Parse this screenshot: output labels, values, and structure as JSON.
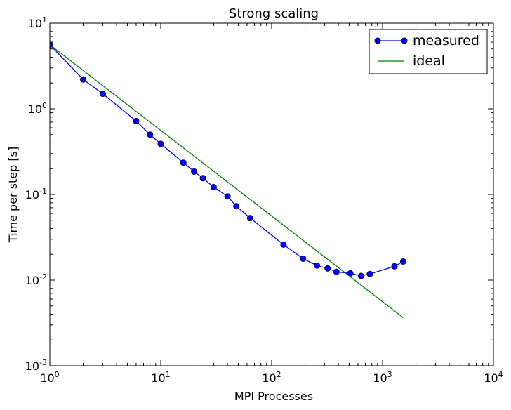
{
  "chart_data": {
    "type": "line",
    "title": "Strong scaling",
    "xlabel": "MPI Processes",
    "ylabel": "Time per step [s]",
    "xscale": "log",
    "yscale": "log",
    "xlim": [
      1,
      10000
    ],
    "ylim": [
      0.001,
      10
    ],
    "x_ticks": [
      {
        "base": "10",
        "exp": "0",
        "value": 1
      },
      {
        "base": "10",
        "exp": "1",
        "value": 10
      },
      {
        "base": "10",
        "exp": "2",
        "value": 100
      },
      {
        "base": "10",
        "exp": "3",
        "value": 1000
      },
      {
        "base": "10",
        "exp": "4",
        "value": 10000
      }
    ],
    "y_ticks": [
      {
        "base": "10",
        "exp": "-3",
        "value": 0.001
      },
      {
        "base": "10",
        "exp": "-2",
        "value": 0.01
      },
      {
        "base": "10",
        "exp": "-1",
        "value": 0.1
      },
      {
        "base": "10",
        "exp": "0",
        "value": 1
      },
      {
        "base": "10",
        "exp": "1",
        "value": 10
      }
    ],
    "grid": false,
    "legend_position": "top-right",
    "series": [
      {
        "name": "measured",
        "color": "#0000ff",
        "marker": "circle",
        "x": [
          1,
          2,
          3,
          6,
          8,
          10,
          16,
          20,
          24,
          30,
          40,
          48,
          64,
          128,
          192,
          256,
          320,
          384,
          512,
          640,
          768,
          1280,
          1536
        ],
        "y": [
          5.6,
          2.2,
          1.5,
          0.72,
          0.5,
          0.39,
          0.235,
          0.185,
          0.155,
          0.122,
          0.095,
          0.073,
          0.053,
          0.026,
          0.0178,
          0.0148,
          0.0137,
          0.0125,
          0.012,
          0.0112,
          0.0118,
          0.0145,
          0.0165
        ]
      },
      {
        "name": "ideal",
        "color": "#008000",
        "marker": "none",
        "x": [
          1,
          1536
        ],
        "y": [
          5.6,
          0.003646
        ]
      }
    ]
  }
}
